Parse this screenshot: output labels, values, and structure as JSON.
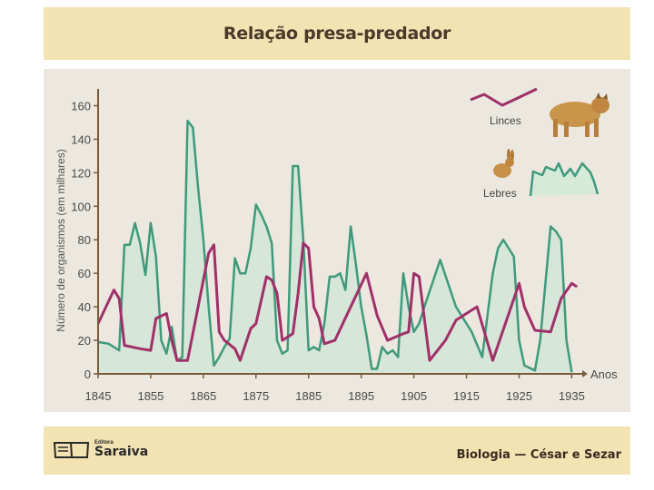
{
  "title": "Relação presa-predador",
  "footer": {
    "publisher_small": "Editora",
    "publisher": "Saraiva",
    "credit": "Biologia — César e Sezar"
  },
  "colors": {
    "lynx": "#a0306a",
    "hare": "#3f9a7c",
    "hare_fill": "#cfe6d6",
    "axis": "#7a5a3a"
  },
  "chart_data": {
    "type": "line",
    "title": "Relação presa-predador",
    "xlabel": "Anos",
    "ylabel": "Número de organismos (em milhares)",
    "xlim": [
      1845,
      1937
    ],
    "ylim": [
      0,
      170
    ],
    "xticks": [
      1845,
      1855,
      1865,
      1875,
      1885,
      1895,
      1905,
      1915,
      1925,
      1935
    ],
    "yticks": [
      0,
      20,
      40,
      60,
      80,
      100,
      120,
      140,
      160
    ],
    "legend_position": "top-right",
    "series": [
      {
        "name": "Lebres",
        "x": [
          1845,
          1847,
          1849,
          1850,
          1851,
          1852,
          1853,
          1854,
          1855,
          1856,
          1857,
          1858,
          1859,
          1860,
          1861,
          1862,
          1863,
          1864,
          1865,
          1866,
          1867,
          1868,
          1869,
          1870,
          1871,
          1872,
          1873,
          1874,
          1875,
          1876,
          1877,
          1878,
          1879,
          1880,
          1881,
          1882,
          1883,
          1884,
          1885,
          1886,
          1887,
          1888,
          1889,
          1890,
          1891,
          1892,
          1893,
          1894,
          1895,
          1896,
          1897,
          1898,
          1899,
          1900,
          1901,
          1902,
          1903,
          1904,
          1905,
          1906,
          1907,
          1910,
          1913,
          1916,
          1918,
          1920,
          1921,
          1922,
          1923,
          1924,
          1925,
          1926,
          1928,
          1929,
          1931,
          1932,
          1933,
          1934,
          1935
        ],
        "values": [
          19,
          18,
          14,
          77,
          77,
          90,
          78,
          59,
          90,
          70,
          20,
          12,
          28,
          8,
          10,
          151,
          147,
          111,
          80,
          40,
          5,
          10,
          16,
          21,
          69,
          60,
          60,
          75,
          101,
          95,
          88,
          78,
          20,
          12,
          14,
          124,
          124,
          80,
          14,
          16,
          14,
          30,
          58,
          58,
          60,
          50,
          88,
          65,
          40,
          23,
          3,
          3,
          16,
          12,
          14,
          10,
          60,
          40,
          25,
          30,
          40,
          68,
          40,
          25,
          10,
          60,
          75,
          80,
          75,
          70,
          20,
          5,
          2,
          20,
          88,
          85,
          80,
          20,
          1
        ]
      },
      {
        "name": "Linces",
        "x": [
          1845,
          1848,
          1849,
          1850,
          1853,
          1855,
          1856,
          1858,
          1859,
          1860,
          1862,
          1866,
          1867,
          1868,
          1869,
          1871,
          1872,
          1874,
          1875,
          1877,
          1878,
          1879,
          1880,
          1882,
          1883,
          1884,
          1885,
          1886,
          1887,
          1888,
          1890,
          1893,
          1896,
          1898,
          1900,
          1903,
          1904,
          1905,
          1906,
          1908,
          1911,
          1913,
          1915,
          1917,
          1920,
          1925,
          1926,
          1928,
          1931,
          1933,
          1935,
          1936
        ],
        "values": [
          30,
          50,
          45,
          17,
          15,
          14,
          33,
          36,
          20,
          8,
          8,
          72,
          77,
          25,
          20,
          15,
          8,
          27,
          30,
          58,
          56,
          48,
          20,
          24,
          48,
          78,
          75,
          40,
          33,
          18,
          20,
          40,
          60,
          35,
          20,
          24,
          25,
          60,
          58,
          8,
          20,
          32,
          36,
          40,
          8,
          54,
          40,
          26,
          25,
          45,
          54,
          52
        ]
      }
    ]
  }
}
